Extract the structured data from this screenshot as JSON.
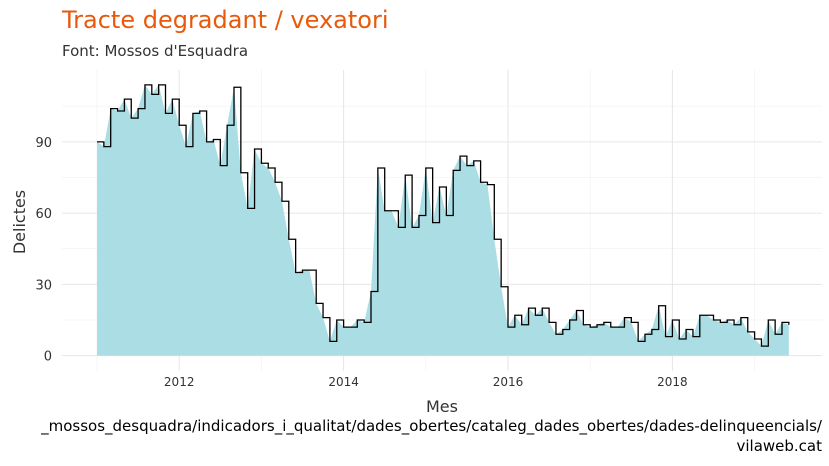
{
  "title": "Tracte degradant / vexatori",
  "subtitle": "Font: Mossos d'Esquadra",
  "caption_line1": "_mossos_desquadra/indicadors_i_qualitat/dades_obertes/cataleg_dades_obertes/dades-delinqueencials/",
  "caption_line2": "vilaweb.cat",
  "colors": {
    "title": "#e8590c",
    "area": "#abdee4",
    "line": "#000000",
    "grid": "#e6e6e6"
  },
  "chart_data": {
    "type": "area",
    "xlabel": "Mes",
    "ylabel": "Delictes",
    "xlim": [
      2011.0,
      2019.5
    ],
    "ylim": [
      0,
      120
    ],
    "grid": true,
    "x_ticks": [
      2012,
      2014,
      2016,
      2018
    ],
    "x_tick_labels": [
      "2012",
      "2014",
      "2016",
      "2018"
    ],
    "y_ticks": [
      0,
      30,
      60,
      90
    ],
    "y_tick_labels": [
      "0",
      "30",
      "60",
      "90"
    ],
    "x_start": "2011-01",
    "months": [
      "2011-01",
      "2011-02",
      "2011-03",
      "2011-04",
      "2011-05",
      "2011-06",
      "2011-07",
      "2011-08",
      "2011-09",
      "2011-10",
      "2011-11",
      "2011-12",
      "2012-01",
      "2012-02",
      "2012-03",
      "2012-04",
      "2012-05",
      "2012-06",
      "2012-07",
      "2012-08",
      "2012-09",
      "2012-10",
      "2012-11",
      "2012-12",
      "2013-01",
      "2013-02",
      "2013-03",
      "2013-04",
      "2013-05",
      "2013-06",
      "2013-07",
      "2013-08",
      "2013-09",
      "2013-10",
      "2013-11",
      "2013-12",
      "2014-01",
      "2014-02",
      "2014-03",
      "2014-04",
      "2014-05",
      "2014-06",
      "2014-07",
      "2014-08",
      "2014-09",
      "2014-10",
      "2014-11",
      "2014-12",
      "2015-01",
      "2015-02",
      "2015-03",
      "2015-04",
      "2015-05",
      "2015-06",
      "2015-07",
      "2015-08",
      "2015-09",
      "2015-10",
      "2015-11",
      "2015-12",
      "2016-01",
      "2016-02",
      "2016-03",
      "2016-04",
      "2016-05",
      "2016-06",
      "2016-07",
      "2016-08",
      "2016-09",
      "2016-10",
      "2016-11",
      "2016-12",
      "2017-01",
      "2017-02",
      "2017-03",
      "2017-04",
      "2017-05",
      "2017-06",
      "2017-07",
      "2017-08",
      "2017-09",
      "2017-10",
      "2017-11",
      "2017-12",
      "2018-01",
      "2018-02",
      "2018-03",
      "2018-04",
      "2018-05",
      "2018-06",
      "2018-07",
      "2018-08",
      "2018-09",
      "2018-10",
      "2018-11",
      "2018-12",
      "2019-01",
      "2019-02",
      "2019-03",
      "2019-04",
      "2019-05",
      "2019-06"
    ],
    "values": [
      90,
      88,
      104,
      103,
      108,
      100,
      104,
      114,
      110,
      114,
      102,
      108,
      97,
      88,
      102,
      103,
      90,
      91,
      80,
      97,
      113,
      77,
      62,
      87,
      81,
      79,
      73,
      65,
      49,
      35,
      36,
      36,
      22,
      16,
      6,
      15,
      12,
      12,
      15,
      14,
      27,
      79,
      61,
      61,
      54,
      76,
      54,
      59,
      79,
      56,
      71,
      59,
      78,
      84,
      80,
      82,
      73,
      72,
      49,
      29,
      12,
      17,
      13,
      20,
      17,
      20,
      14,
      9,
      11,
      15,
      19,
      13,
      12,
      13,
      14,
      12,
      12,
      16,
      14,
      6,
      9,
      11,
      21,
      8,
      15,
      7,
      11,
      8,
      17,
      17,
      15,
      14,
      15,
      13,
      16,
      10,
      7,
      4,
      15,
      9,
      14,
      13
    ]
  }
}
